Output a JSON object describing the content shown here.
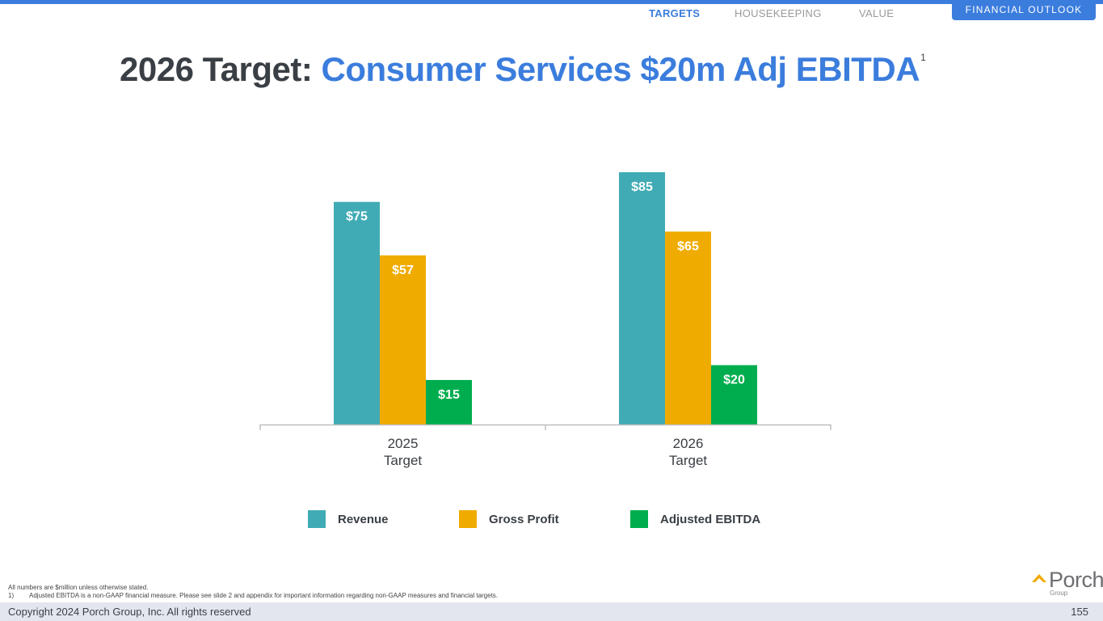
{
  "nav": {
    "items": [
      {
        "label": "TARGETS",
        "active": true
      },
      {
        "label": "HOUSEKEEPING",
        "active": false
      },
      {
        "label": "VALUE",
        "active": false
      }
    ],
    "section": "FINANCIAL OUTLOOK"
  },
  "title": {
    "prefix": "2026 Target:",
    "highlight": "Consumer Services $20m Adj EBITDA",
    "footnote_ref": "1"
  },
  "colors": {
    "accent": "#3b7ddd",
    "revenue": "#41abb5",
    "gross_profit": "#f0ab00",
    "adjusted_ebitda": "#00ad4e"
  },
  "chart_data": {
    "type": "bar",
    "title": "2026 Target: Consumer Services $20m Adj EBITDA",
    "categories": [
      [
        "2025",
        "Target"
      ],
      [
        "2026",
        "Target"
      ]
    ],
    "series": [
      {
        "name": "Revenue",
        "values": [
          75,
          85
        ],
        "labels": [
          "$75",
          "$85"
        ],
        "color": "#41abb5"
      },
      {
        "name": "Gross Profit",
        "values": [
          57,
          65
        ],
        "labels": [
          "$57",
          "$65"
        ],
        "color": "#f0ab00"
      },
      {
        "name": "Adjusted EBITDA",
        "values": [
          15,
          20
        ],
        "labels": [
          "$15",
          "$20"
        ],
        "color": "#00ad4e"
      }
    ],
    "xlabel": "",
    "ylabel": "",
    "units": "$ million",
    "ylim": [
      0,
      85
    ],
    "grid": false,
    "legend": "bottom"
  },
  "legend": [
    {
      "label": "Revenue"
    },
    {
      "label": "Gross Profit"
    },
    {
      "label": "Adjusted EBITDA"
    }
  ],
  "footnotes": {
    "general": "All numbers are $million unless otherwise stated.",
    "note1_num": "1)",
    "note1_text": "Adjusted EBITDA is a non-GAAP financial measure. Please see slide 2 and appendix for important information regarding non-GAAP measures and financial targets."
  },
  "footer": {
    "copyright": "Copyright 2024 Porch Group, Inc. All rights reserved",
    "page_number": "155"
  },
  "logo": {
    "name": "Porch",
    "sub": "Group"
  }
}
